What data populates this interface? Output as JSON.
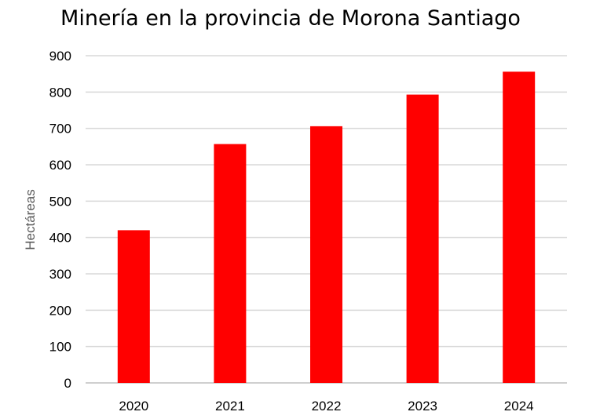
{
  "chart_data": {
    "type": "bar",
    "title": "Minería en la provincia de Morona Santiago",
    "xlabel": "",
    "ylabel": "Hectáreas",
    "categories": [
      "2020",
      "2021",
      "2022",
      "2023",
      "2024"
    ],
    "values": [
      420,
      657,
      706,
      793,
      856
    ],
    "ylim": [
      0,
      900
    ],
    "yticks": [
      0,
      100,
      200,
      300,
      400,
      500,
      600,
      700,
      800,
      900
    ],
    "grid": true,
    "legend": "none",
    "bar_color": "#ff0000"
  }
}
